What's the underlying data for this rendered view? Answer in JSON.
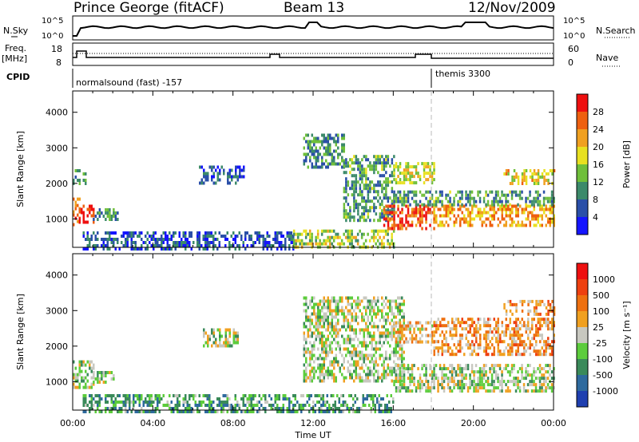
{
  "header": {
    "station": "Prince George (fitACF)",
    "beam": "Beam 13",
    "date": "12/Nov/2009"
  },
  "top_strip": {
    "left_label": "N.Sky",
    "left_ticks": [
      "10^5",
      "10^0"
    ],
    "right_label": "N.Search",
    "right_ticks": [
      "10^5",
      "10^0"
    ]
  },
  "freq_strip": {
    "left_label_1": "Freq.",
    "left_label_2": "[MHz]",
    "left_ticks": [
      "18",
      "8"
    ],
    "right_label": "Nave",
    "right_ticks": [
      "60",
      "0"
    ]
  },
  "cpid": {
    "label": "CPID",
    "mode_1": "normalsound (fast) -157",
    "mode_2": "themis 3300"
  },
  "chart_data": [
    {
      "type": "heatmap",
      "name": "power-panel",
      "ylabel": "Slant Range [km]",
      "yticks": [
        1000,
        2000,
        3000,
        4000
      ],
      "ylim": [
        200,
        4600
      ],
      "xlim_hours": [
        0,
        24
      ],
      "colorbar_label": "Power [dB]",
      "colorbar_ticks": [
        "4",
        "8",
        "12",
        "16",
        "20",
        "24",
        "28"
      ],
      "colorbar_colors": [
        "#1414ff",
        "#2a4fa8",
        "#3c8a6a",
        "#6fbf3a",
        "#e8e020",
        "#f0a020",
        "#ee6010",
        "#ee1010"
      ],
      "regions": [
        {
          "t0": 0.0,
          "t1": 0.3,
          "r0": 800,
          "r1": 1600,
          "level": 0.8
        },
        {
          "t0": 0.3,
          "t1": 1.0,
          "r0": 900,
          "r1": 1400,
          "level": 0.95
        },
        {
          "t0": 1.0,
          "t1": 2.2,
          "r0": 1000,
          "r1": 1300,
          "level": 0.3
        },
        {
          "t0": 0.0,
          "t1": 0.6,
          "r0": 2000,
          "r1": 2400,
          "level": 0.35
        },
        {
          "t0": 6.3,
          "t1": 8.5,
          "r0": 2000,
          "r1": 2500,
          "level": 0.2
        },
        {
          "t0": 0.5,
          "t1": 11.0,
          "r0": 200,
          "r1": 650,
          "level": 0.2
        },
        {
          "t0": 11.0,
          "t1": 16.0,
          "r0": 200,
          "r1": 700,
          "level": 0.5
        },
        {
          "t0": 11.5,
          "t1": 13.5,
          "r0": 2500,
          "r1": 3400,
          "level": 0.3
        },
        {
          "t0": 13.5,
          "t1": 16.0,
          "r0": 1000,
          "r1": 2800,
          "level": 0.35
        },
        {
          "t0": 15.5,
          "t1": 18.0,
          "r0": 700,
          "r1": 1400,
          "level": 0.85
        },
        {
          "t0": 18.0,
          "t1": 24.0,
          "r0": 800,
          "r1": 1400,
          "level": 0.7
        },
        {
          "t0": 16.0,
          "t1": 18.0,
          "r0": 2000,
          "r1": 2600,
          "level": 0.55
        },
        {
          "t0": 21.5,
          "t1": 24.0,
          "r0": 2000,
          "r1": 2400,
          "level": 0.6
        },
        {
          "t0": 16.0,
          "t1": 24.0,
          "r0": 1400,
          "r1": 1800,
          "level": 0.35
        }
      ]
    },
    {
      "type": "heatmap",
      "name": "velocity-panel",
      "ylabel": "Slant Range [km]",
      "yticks": [
        1000,
        2000,
        3000,
        4000
      ],
      "ylim": [
        200,
        4600
      ],
      "xlim_hours": [
        0,
        24
      ],
      "xticks": [
        "00:00",
        "04:00",
        "08:00",
        "12:00",
        "16:00",
        "20:00",
        "00:00"
      ],
      "xlabel": "Time UT",
      "colorbar_label": "Velocity [m s⁻¹]",
      "colorbar_ticks": [
        "1000",
        "500",
        "100",
        "25",
        "-25",
        "-100",
        "-500",
        "-1000"
      ],
      "colorbar_colors": [
        "#1f3fb0",
        "#2e6a9e",
        "#3a8a5a",
        "#5ccc3c",
        "#c8c8c0",
        "#f0a020",
        "#ee7010",
        "#ee4010",
        "#ee1010"
      ],
      "regions": [
        {
          "t0": 0.0,
          "t1": 1.0,
          "r0": 800,
          "r1": 1600,
          "level": 0.45
        },
        {
          "t0": 1.0,
          "t1": 2.0,
          "r0": 1000,
          "r1": 1300,
          "level": 0.45
        },
        {
          "t0": 6.5,
          "t1": 8.2,
          "r0": 2000,
          "r1": 2500,
          "level": 0.45
        },
        {
          "t0": 0.5,
          "t1": 16.0,
          "r0": 200,
          "r1": 650,
          "level": 0.3
        },
        {
          "t0": 11.5,
          "t1": 16.5,
          "r0": 1000,
          "r1": 3400,
          "level": 0.45
        },
        {
          "t0": 16.0,
          "t1": 24.0,
          "r0": 700,
          "r1": 1500,
          "level": 0.45
        },
        {
          "t0": 16.0,
          "t1": 18.0,
          "r0": 2100,
          "r1": 2700,
          "level": 0.6
        },
        {
          "t0": 18.0,
          "t1": 24.0,
          "r0": 1800,
          "r1": 2800,
          "level": 0.65
        },
        {
          "t0": 21.5,
          "t1": 24.0,
          "r0": 2900,
          "r1": 3300,
          "level": 0.65
        }
      ]
    }
  ]
}
